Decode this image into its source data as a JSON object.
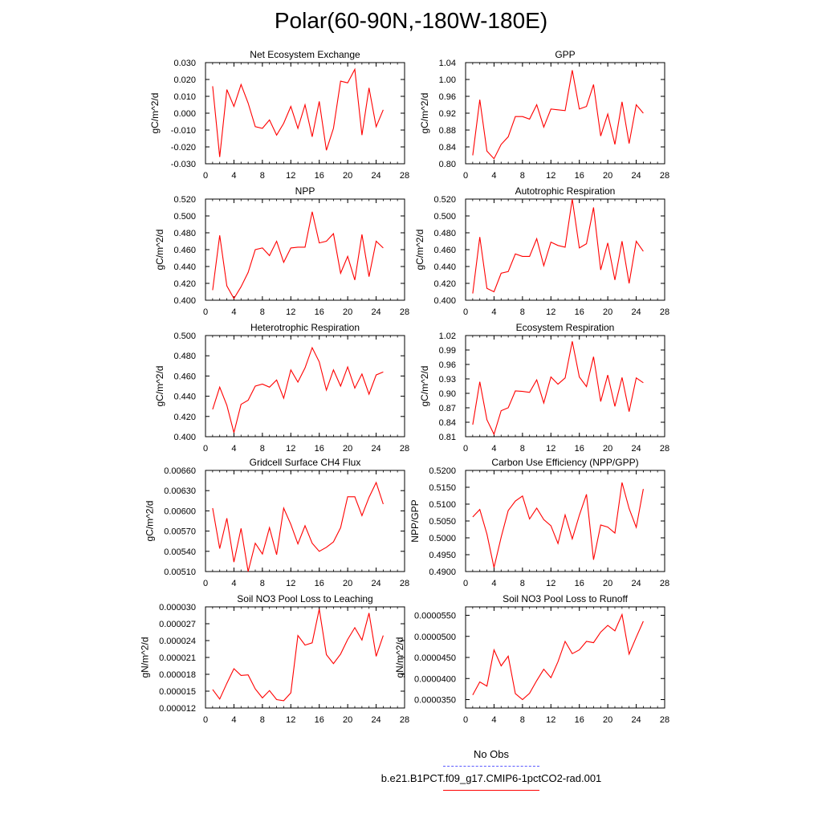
{
  "title": "Polar(60-90N,-180W-180E)",
  "legend": [
    {
      "label": "No Obs",
      "color": "#5a5aff",
      "dash": true
    },
    {
      "label": "b.e21.B1PCT.f09_g17.CMIP6-1pctCO2-rad.001",
      "color": "#ff0000",
      "dash": false
    }
  ],
  "chart_data": [
    {
      "type": "line",
      "title": "Net Ecosystem Exchange",
      "ylabel": "gC/m^2/d",
      "ylim": [
        -0.03,
        0.03
      ],
      "yticks": [
        "-0.030",
        "-0.020",
        "-0.010",
        "0.000",
        "0.010",
        "0.020",
        "0.030"
      ],
      "xlim": [
        0,
        28
      ],
      "xticks": [
        "0",
        "4",
        "8",
        "12",
        "16",
        "20",
        "24",
        "28"
      ],
      "x": [
        1,
        2,
        3,
        4,
        5,
        6,
        7,
        8,
        9,
        10,
        11,
        12,
        13,
        14,
        15,
        16,
        17,
        18,
        19,
        20,
        21,
        22,
        23,
        24,
        25
      ],
      "series": [
        {
          "color": "#ff0000",
          "values": [
            0.016,
            -0.026,
            0.014,
            0.004,
            0.017,
            0.006,
            -0.008,
            -0.009,
            -0.004,
            -0.013,
            -0.006,
            0.004,
            -0.009,
            0.005,
            -0.014,
            0.007,
            -0.022,
            -0.009,
            0.019,
            0.018,
            0.026,
            -0.013,
            0.015,
            -0.008,
            0.002
          ]
        }
      ]
    },
    {
      "type": "line",
      "title": "GPP",
      "ylabel": "gC/m^2/d",
      "ylim": [
        0.8,
        1.04
      ],
      "yticks": [
        "0.80",
        "0.84",
        "0.88",
        "0.92",
        "0.96",
        "1.00",
        "1.04"
      ],
      "xlim": [
        0,
        28
      ],
      "xticks": [
        "0",
        "4",
        "8",
        "12",
        "16",
        "20",
        "24",
        "28"
      ],
      "x": [
        1,
        2,
        3,
        4,
        5,
        6,
        7,
        8,
        9,
        10,
        11,
        12,
        13,
        14,
        15,
        16,
        17,
        18,
        19,
        20,
        21,
        22,
        23,
        24,
        25
      ],
      "series": [
        {
          "color": "#ff0000",
          "values": [
            0.82,
            0.952,
            0.83,
            0.812,
            0.846,
            0.864,
            0.912,
            0.912,
            0.906,
            0.94,
            0.887,
            0.93,
            0.928,
            0.926,
            1.022,
            0.93,
            0.936,
            0.988,
            0.866,
            0.918,
            0.846,
            0.947,
            0.848,
            0.94,
            0.92
          ]
        }
      ]
    },
    {
      "type": "line",
      "title": "NPP",
      "ylabel": "gC/m^2/d",
      "ylim": [
        0.4,
        0.52
      ],
      "yticks": [
        "0.400",
        "0.420",
        "0.440",
        "0.460",
        "0.480",
        "0.500",
        "0.520"
      ],
      "xlim": [
        0,
        28
      ],
      "xticks": [
        "0",
        "4",
        "8",
        "12",
        "16",
        "20",
        "24",
        "28"
      ],
      "x": [
        1,
        2,
        3,
        4,
        5,
        6,
        7,
        8,
        9,
        10,
        11,
        12,
        13,
        14,
        15,
        16,
        17,
        18,
        19,
        20,
        21,
        22,
        23,
        24,
        25
      ],
      "series": [
        {
          "color": "#ff0000",
          "values": [
            0.412,
            0.477,
            0.417,
            0.402,
            0.416,
            0.433,
            0.46,
            0.462,
            0.453,
            0.47,
            0.445,
            0.462,
            0.463,
            0.463,
            0.505,
            0.468,
            0.47,
            0.479,
            0.432,
            0.452,
            0.424,
            0.478,
            0.428,
            0.47,
            0.462
          ]
        }
      ]
    },
    {
      "type": "line",
      "title": "Autotrophic Respiration",
      "ylabel": "gC/m^2/d",
      "ylim": [
        0.4,
        0.52
      ],
      "yticks": [
        "0.400",
        "0.420",
        "0.440",
        "0.460",
        "0.480",
        "0.500",
        "0.520"
      ],
      "xlim": [
        0,
        28
      ],
      "xticks": [
        "0",
        "4",
        "8",
        "12",
        "16",
        "20",
        "24",
        "28"
      ],
      "x": [
        1,
        2,
        3,
        4,
        5,
        6,
        7,
        8,
        9,
        10,
        11,
        12,
        13,
        14,
        15,
        16,
        17,
        18,
        19,
        20,
        21,
        22,
        23,
        24,
        25
      ],
      "series": [
        {
          "color": "#ff0000",
          "values": [
            0.408,
            0.475,
            0.414,
            0.41,
            0.432,
            0.434,
            0.455,
            0.452,
            0.452,
            0.473,
            0.441,
            0.469,
            0.465,
            0.463,
            0.52,
            0.462,
            0.467,
            0.51,
            0.436,
            0.468,
            0.424,
            0.47,
            0.42,
            0.47,
            0.458
          ]
        }
      ]
    },
    {
      "type": "line",
      "title": "Heterotrophic Respiration",
      "ylabel": "gC/m^2/d",
      "ylim": [
        0.4,
        0.5
      ],
      "yticks": [
        "0.400",
        "0.420",
        "0.440",
        "0.460",
        "0.480",
        "0.500"
      ],
      "xlim": [
        0,
        28
      ],
      "xticks": [
        "0",
        "4",
        "8",
        "12",
        "16",
        "20",
        "24",
        "28"
      ],
      "x": [
        1,
        2,
        3,
        4,
        5,
        6,
        7,
        8,
        9,
        10,
        11,
        12,
        13,
        14,
        15,
        16,
        17,
        18,
        19,
        20,
        21,
        22,
        23,
        24,
        25
      ],
      "series": [
        {
          "color": "#ff0000",
          "values": [
            0.427,
            0.449,
            0.431,
            0.404,
            0.432,
            0.436,
            0.45,
            0.452,
            0.449,
            0.456,
            0.438,
            0.466,
            0.454,
            0.468,
            0.488,
            0.474,
            0.446,
            0.466,
            0.45,
            0.469,
            0.448,
            0.462,
            0.442,
            0.461,
            0.464
          ]
        }
      ]
    },
    {
      "type": "line",
      "title": "Ecosystem Respiration",
      "ylabel": "gC/m^2/d",
      "ylim": [
        0.81,
        1.02
      ],
      "yticks": [
        "0.81",
        "0.84",
        "0.87",
        "0.90",
        "0.93",
        "0.96",
        "0.99",
        "1.02"
      ],
      "xlim": [
        0,
        28
      ],
      "xticks": [
        "0",
        "4",
        "8",
        "12",
        "16",
        "20",
        "24",
        "28"
      ],
      "x": [
        1,
        2,
        3,
        4,
        5,
        6,
        7,
        8,
        9,
        10,
        11,
        12,
        13,
        14,
        15,
        16,
        17,
        18,
        19,
        20,
        21,
        22,
        23,
        24,
        25
      ],
      "series": [
        {
          "color": "#ff0000",
          "values": [
            0.835,
            0.924,
            0.845,
            0.815,
            0.864,
            0.87,
            0.905,
            0.904,
            0.902,
            0.928,
            0.88,
            0.934,
            0.919,
            0.932,
            1.008,
            0.934,
            0.914,
            0.976,
            0.883,
            0.938,
            0.873,
            0.933,
            0.862,
            0.932,
            0.922
          ]
        }
      ]
    },
    {
      "type": "line",
      "title": "Gridcell Surface CH4 Flux",
      "ylabel": "gC/m^2/d",
      "ylim": [
        0.0051,
        0.0066
      ],
      "yticks": [
        "0.00510",
        "0.00540",
        "0.00570",
        "0.00600",
        "0.00630",
        "0.00660"
      ],
      "xlim": [
        0,
        28
      ],
      "xticks": [
        "0",
        "4",
        "8",
        "12",
        "16",
        "20",
        "24",
        "28"
      ],
      "x": [
        1,
        2,
        3,
        4,
        5,
        6,
        7,
        8,
        9,
        10,
        11,
        12,
        13,
        14,
        15,
        16,
        17,
        18,
        19,
        20,
        21,
        22,
        23,
        24,
        25
      ],
      "series": [
        {
          "color": "#ff0000",
          "values": [
            0.00604,
            0.00544,
            0.00589,
            0.00524,
            0.00574,
            0.0051,
            0.00552,
            0.00536,
            0.00575,
            0.00535,
            0.00604,
            0.0058,
            0.00551,
            0.00578,
            0.00552,
            0.0054,
            0.00546,
            0.00554,
            0.00575,
            0.00621,
            0.00621,
            0.00593,
            0.0062,
            0.00642,
            0.0061
          ]
        }
      ]
    },
    {
      "type": "line",
      "title": "Carbon Use Efficiency (NPP/GPP)",
      "ylabel": "NPP/GPP",
      "ylim": [
        0.49,
        0.52
      ],
      "yticks": [
        "0.4900",
        "0.4950",
        "0.5000",
        "0.5050",
        "0.5100",
        "0.5150",
        "0.5200"
      ],
      "xlim": [
        0,
        28
      ],
      "xticks": [
        "0",
        "4",
        "8",
        "12",
        "16",
        "20",
        "24",
        "28"
      ],
      "x": [
        1,
        2,
        3,
        4,
        5,
        6,
        7,
        8,
        9,
        10,
        11,
        12,
        13,
        14,
        15,
        16,
        17,
        18,
        19,
        20,
        21,
        22,
        23,
        24,
        25
      ],
      "series": [
        {
          "color": "#ff0000",
          "values": [
            0.5062,
            0.5084,
            0.5011,
            0.4912,
            0.5002,
            0.5081,
            0.5109,
            0.5124,
            0.5056,
            0.5088,
            0.5054,
            0.5036,
            0.4983,
            0.5068,
            0.4997,
            0.5067,
            0.5129,
            0.4935,
            0.5038,
            0.5032,
            0.5014,
            0.5164,
            0.5087,
            0.5031,
            0.5145
          ]
        }
      ]
    },
    {
      "type": "line",
      "title": "Soil NO3 Pool Loss to Leaching",
      "ylabel": "gN/m^2/d",
      "ylim": [
        1.2e-05,
        3e-05
      ],
      "yticks": [
        "0.000012",
        "0.000015",
        "0.000018",
        "0.000021",
        "0.000024",
        "0.000027",
        "0.000030"
      ],
      "xlim": [
        0,
        28
      ],
      "xticks": [
        "0",
        "4",
        "8",
        "12",
        "16",
        "20",
        "24",
        "28"
      ],
      "x": [
        1,
        2,
        3,
        4,
        5,
        6,
        7,
        8,
        9,
        10,
        11,
        12,
        13,
        14,
        15,
        16,
        17,
        18,
        19,
        20,
        21,
        22,
        23,
        24,
        25
      ],
      "series": [
        {
          "color": "#ff0000",
          "values": [
            1.53e-05,
            1.36e-05,
            1.64e-05,
            1.9e-05,
            1.78e-05,
            1.79e-05,
            1.54e-05,
            1.38e-05,
            1.51e-05,
            1.35e-05,
            1.33e-05,
            1.47e-05,
            2.49e-05,
            2.32e-05,
            2.36e-05,
            2.96e-05,
            2.15e-05,
            1.99e-05,
            2.16e-05,
            2.42e-05,
            2.63e-05,
            2.41e-05,
            2.89e-05,
            2.12e-05,
            2.49e-05
          ]
        }
      ]
    },
    {
      "type": "line",
      "title": "Soil NO3 Pool Loss to Runoff",
      "ylabel": "gN/m^2/d",
      "ylim": [
        3.3e-05,
        5.7e-05
      ],
      "yticks": [
        "0.0000350",
        "0.0000400",
        "0.0000450",
        "0.0000500",
        "0.0000550"
      ],
      "xlim": [
        0,
        28
      ],
      "xticks": [
        "0",
        "4",
        "8",
        "12",
        "16",
        "20",
        "24",
        "28"
      ],
      "x": [
        1,
        2,
        3,
        4,
        5,
        6,
        7,
        8,
        9,
        10,
        11,
        12,
        13,
        14,
        15,
        16,
        17,
        18,
        19,
        20,
        21,
        22,
        23,
        24,
        25
      ],
      "series": [
        {
          "color": "#ff0000",
          "values": [
            3.61e-05,
            3.92e-05,
            3.82e-05,
            4.68e-05,
            4.3e-05,
            4.53e-05,
            3.64e-05,
            3.5e-05,
            3.65e-05,
            3.95e-05,
            4.22e-05,
            4.02e-05,
            4.4e-05,
            4.88e-05,
            4.59e-05,
            4.68e-05,
            4.88e-05,
            4.85e-05,
            5.1e-05,
            5.26e-05,
            5.13e-05,
            5.52e-05,
            4.58e-05,
            4.98e-05,
            5.36e-05
          ]
        }
      ]
    }
  ]
}
